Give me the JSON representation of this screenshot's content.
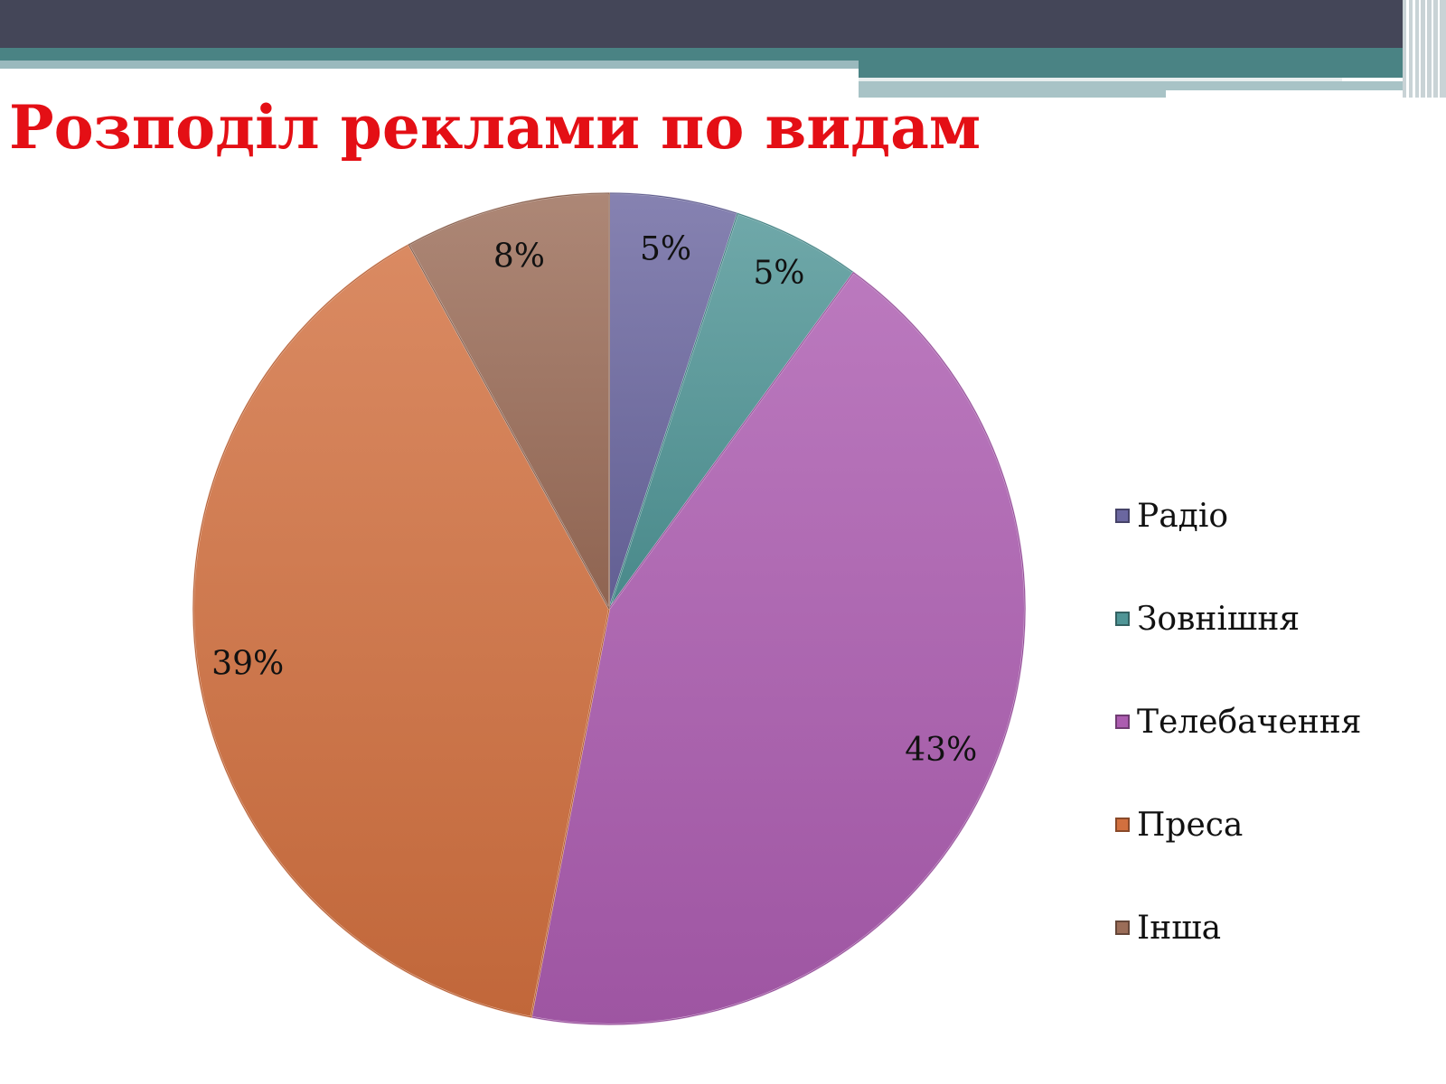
{
  "slide": {
    "title": "Розподіл реклами по видам"
  },
  "chart_data": {
    "type": "pie",
    "title": "",
    "categories": [
      "Радіо",
      "Зовнішня",
      "Телебачення",
      "Преса",
      "Інша"
    ],
    "values": [
      5,
      5,
      43,
      39,
      8
    ],
    "labels": [
      "5%",
      "5%",
      "43%",
      "39%",
      "8%"
    ],
    "colors": [
      "#6b67a0",
      "#4f9596",
      "#ac5cb0",
      "#d2703f",
      "#9b6d58"
    ],
    "start_angle": "12 o'clock",
    "direction": "clockwise",
    "legend_position": "right"
  }
}
